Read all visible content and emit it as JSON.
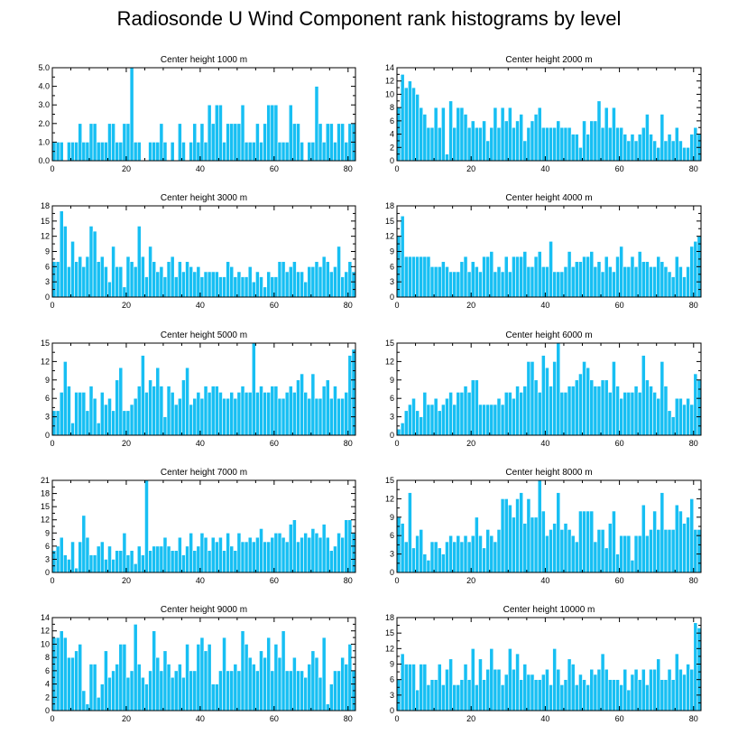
{
  "title": "Radiosonde U Wind Component rank histograms by level",
  "colors": {
    "bar": "#17BFF3",
    "bar_edge": "#ffffff",
    "axis": "#000000"
  },
  "chart_data": [
    {
      "type": "bar",
      "title": "Center height 1000 m",
      "xlim": [
        0,
        82
      ],
      "xticks": [
        0,
        20,
        40,
        60,
        80
      ],
      "ylim": [
        0,
        5
      ],
      "yticks": [
        0,
        1,
        2,
        3,
        4,
        5
      ],
      "yticklabels": [
        "0.0",
        "1.0",
        "2.0",
        "3.0",
        "4.0",
        "5.0"
      ],
      "yaxis_side": "left",
      "values": [
        1,
        1,
        1,
        0,
        1,
        1,
        1,
        2,
        1,
        1,
        2,
        2,
        1,
        1,
        1,
        2,
        2,
        1,
        1,
        2,
        2,
        5,
        1,
        1,
        0,
        0,
        1,
        1,
        1,
        2,
        1,
        0,
        1,
        0,
        2,
        1,
        0,
        1,
        2,
        1,
        2,
        1,
        3,
        2,
        3,
        3,
        1,
        2,
        2,
        2,
        2,
        3,
        1,
        1,
        1,
        2,
        1,
        2,
        3,
        3,
        3,
        1,
        1,
        1,
        3,
        2,
        2,
        1,
        0,
        1,
        1,
        4,
        2,
        1,
        2,
        2,
        1,
        2,
        2,
        1,
        2,
        2
      ]
    },
    {
      "type": "bar",
      "title": "Center height 2000 m",
      "xlim": [
        0,
        82
      ],
      "xticks": [
        0,
        20,
        40,
        60,
        80
      ],
      "ylim": [
        0,
        14
      ],
      "yticks": [
        0,
        2,
        4,
        6,
        8,
        10,
        12,
        14
      ],
      "yticklabels": [
        "0",
        "2",
        "4",
        "6",
        "8",
        "10",
        "12",
        "14"
      ],
      "yaxis_side": "left",
      "values": [
        8,
        13,
        11,
        12,
        11,
        10,
        8,
        7,
        5,
        5,
        8,
        5,
        8,
        1,
        9,
        5,
        8,
        8,
        7,
        5,
        6,
        5,
        5,
        6,
        3,
        5,
        8,
        5,
        8,
        6,
        8,
        5,
        6,
        7,
        3,
        5,
        6,
        7,
        8,
        5,
        5,
        5,
        5,
        6,
        5,
        5,
        5,
        4,
        4,
        2,
        6,
        4,
        6,
        6,
        9,
        5,
        8,
        5,
        8,
        5,
        5,
        4,
        3,
        4,
        3,
        4,
        5,
        7,
        4,
        3,
        2,
        7,
        3,
        4,
        3,
        5,
        3,
        2,
        2,
        4,
        5,
        4
      ]
    },
    {
      "type": "bar",
      "title": "Center height 3000 m",
      "xlim": [
        0,
        82
      ],
      "xticks": [
        0,
        20,
        40,
        60,
        80
      ],
      "ylim": [
        0,
        18
      ],
      "yticks": [
        0,
        3,
        6,
        9,
        12,
        15,
        18
      ],
      "yticklabels": [
        "0",
        "3",
        "6",
        "9",
        "12",
        "15",
        "18"
      ],
      "yaxis_side": "left",
      "values": [
        7,
        7,
        17,
        14,
        6,
        11,
        7,
        8,
        6,
        8,
        14,
        13,
        7,
        8,
        6,
        3,
        10,
        6,
        6,
        2,
        8,
        7,
        6,
        14,
        8,
        4,
        10,
        7,
        5,
        6,
        4,
        7,
        8,
        4,
        7,
        5,
        7,
        6,
        5,
        6,
        4,
        5,
        5,
        5,
        5,
        4,
        4,
        7,
        6,
        4,
        5,
        4,
        4,
        6,
        3,
        5,
        4,
        2,
        5,
        4,
        4,
        7,
        7,
        5,
        6,
        7,
        5,
        5,
        3,
        6,
        6,
        7,
        6,
        8,
        7,
        5,
        6,
        10,
        4,
        5,
        7,
        5
      ]
    },
    {
      "type": "bar",
      "title": "Center height 4000 m",
      "xlim": [
        0,
        82
      ],
      "xticks": [
        0,
        20,
        40,
        60,
        80
      ],
      "ylim": [
        0,
        18
      ],
      "yticks": [
        0,
        3,
        6,
        9,
        12,
        15,
        18
      ],
      "yticklabels": [
        "0",
        "3",
        "6",
        "9",
        "12",
        "15",
        "18"
      ],
      "yaxis_side": "left",
      "values": [
        12,
        16,
        8,
        8,
        8,
        8,
        8,
        8,
        8,
        6,
        6,
        6,
        7,
        6,
        5,
        5,
        5,
        7,
        8,
        5,
        7,
        6,
        5,
        8,
        8,
        9,
        5,
        6,
        5,
        8,
        5,
        8,
        8,
        8,
        9,
        6,
        6,
        8,
        9,
        6,
        6,
        11,
        5,
        5,
        5,
        6,
        9,
        6,
        7,
        7,
        8,
        8,
        9,
        6,
        7,
        5,
        8,
        6,
        5,
        8,
        10,
        6,
        6,
        8,
        6,
        9,
        7,
        7,
        6,
        6,
        8,
        7,
        6,
        5,
        4,
        8,
        6,
        4,
        6,
        10,
        11,
        12
      ]
    },
    {
      "type": "bar",
      "title": "Center height 5000 m",
      "xlim": [
        0,
        82
      ],
      "xticks": [
        0,
        20,
        40,
        60,
        80
      ],
      "ylim": [
        0,
        15
      ],
      "yticks": [
        0,
        3,
        6,
        9,
        12,
        15
      ],
      "yticklabels": [
        "0",
        "3",
        "6",
        "9",
        "12",
        "15"
      ],
      "yaxis_side": "left",
      "values": [
        4,
        4,
        7,
        12,
        8,
        2,
        7,
        7,
        7,
        4,
        8,
        6,
        2,
        7,
        5,
        6,
        4,
        9,
        11,
        4,
        4,
        5,
        6,
        8,
        13,
        7,
        9,
        8,
        11,
        8,
        3,
        8,
        7,
        5,
        6,
        9,
        11,
        5,
        6,
        7,
        6,
        8,
        7,
        8,
        8,
        7,
        6,
        6,
        7,
        6,
        7,
        8,
        7,
        7,
        15,
        7,
        8,
        7,
        7,
        8,
        8,
        6,
        6,
        7,
        8,
        7,
        9,
        10,
        7,
        6,
        10,
        6,
        6,
        8,
        9,
        6,
        8,
        6,
        6,
        7,
        13,
        14
      ]
    },
    {
      "type": "bar",
      "title": "Center height 6000 m",
      "xlim": [
        0,
        82
      ],
      "xticks": [
        0,
        20,
        40,
        60,
        80
      ],
      "ylim": [
        0,
        15
      ],
      "yticks": [
        0,
        3,
        6,
        9,
        12,
        15
      ],
      "yticklabels": [
        "0",
        "3",
        "6",
        "9",
        "12",
        "15"
      ],
      "yaxis_side": "left",
      "values": [
        1,
        2,
        4,
        5,
        6,
        4,
        3,
        7,
        5,
        5,
        6,
        4,
        5,
        6,
        7,
        5,
        7,
        7,
        8,
        7,
        9,
        9,
        5,
        5,
        5,
        5,
        5,
        6,
        5,
        7,
        7,
        6,
        8,
        7,
        8,
        12,
        12,
        9,
        7,
        13,
        11,
        8,
        12,
        15,
        7,
        7,
        8,
        8,
        9,
        10,
        12,
        11,
        9,
        8,
        8,
        9,
        9,
        7,
        12,
        8,
        6,
        7,
        7,
        7,
        8,
        7,
        13,
        9,
        8,
        7,
        6,
        12,
        8,
        4,
        3,
        6,
        6,
        5,
        6,
        5,
        10,
        9
      ]
    },
    {
      "type": "bar",
      "title": "Center height 7000 m",
      "xlim": [
        0,
        82
      ],
      "xticks": [
        0,
        20,
        40,
        60,
        80
      ],
      "ylim": [
        0,
        21
      ],
      "yticks": [
        0,
        3,
        6,
        9,
        12,
        15,
        18,
        21
      ],
      "yticklabels": [
        "0",
        "3",
        "6",
        "9",
        "12",
        "15",
        "18",
        "21"
      ],
      "yaxis_side": "left",
      "values": [
        5,
        6,
        8,
        4,
        3,
        7,
        1,
        7,
        13,
        8,
        4,
        4,
        6,
        7,
        3,
        6,
        3,
        5,
        5,
        9,
        4,
        5,
        2,
        6,
        4,
        21,
        5,
        6,
        6,
        6,
        8,
        6,
        5,
        5,
        8,
        4,
        6,
        9,
        5,
        6,
        9,
        8,
        5,
        8,
        7,
        8,
        5,
        9,
        6,
        5,
        9,
        7,
        7,
        8,
        7,
        8,
        10,
        7,
        7,
        8,
        9,
        9,
        8,
        7,
        11,
        12,
        7,
        8,
        9,
        8,
        10,
        9,
        8,
        11,
        8,
        5,
        6,
        9,
        8,
        12,
        12,
        9
      ]
    },
    {
      "type": "bar",
      "title": "Center height 8000 m",
      "xlim": [
        0,
        82
      ],
      "xticks": [
        0,
        20,
        40,
        60,
        80
      ],
      "ylim": [
        0,
        15
      ],
      "yticks": [
        0,
        3,
        6,
        9,
        12,
        15
      ],
      "yticklabels": [
        "0",
        "3",
        "6",
        "9",
        "12",
        "15"
      ],
      "yaxis_side": "left",
      "values": [
        9,
        8,
        5,
        13,
        4,
        6,
        7,
        3,
        2,
        5,
        5,
        4,
        3,
        5,
        6,
        5,
        6,
        5,
        6,
        5,
        6,
        9,
        6,
        4,
        7,
        6,
        5,
        7,
        12,
        12,
        11,
        9,
        12,
        13,
        8,
        12,
        9,
        9,
        15,
        10,
        6,
        7,
        8,
        13,
        7,
        8,
        7,
        6,
        5,
        10,
        10,
        10,
        10,
        5,
        7,
        7,
        4,
        8,
        10,
        3,
        6,
        6,
        6,
        2,
        6,
        6,
        11,
        6,
        7,
        10,
        7,
        13,
        7,
        7,
        7,
        11,
        10,
        8,
        9,
        12,
        7,
        7
      ]
    },
    {
      "type": "bar",
      "title": "Center height 9000 m",
      "xlim": [
        0,
        82
      ],
      "xticks": [
        0,
        20,
        40,
        60,
        80
      ],
      "ylim": [
        0,
        14
      ],
      "yticks": [
        0,
        2,
        4,
        6,
        8,
        10,
        12,
        14
      ],
      "yticklabels": [
        "0",
        "2",
        "4",
        "6",
        "8",
        "10",
        "12",
        "14"
      ],
      "yaxis_side": "left",
      "values": [
        11,
        11,
        12,
        11,
        8,
        8,
        9,
        10,
        3,
        1,
        7,
        7,
        2,
        4,
        9,
        5,
        6,
        7,
        10,
        10,
        5,
        6,
        13,
        7,
        5,
        4,
        6,
        12,
        8,
        6,
        9,
        7,
        5,
        6,
        7,
        5,
        10,
        6,
        6,
        10,
        11,
        9,
        10,
        4,
        4,
        6,
        11,
        6,
        6,
        7,
        6,
        12,
        10,
        8,
        7,
        6,
        9,
        8,
        11,
        6,
        10,
        8,
        12,
        6,
        6,
        8,
        6,
        6,
        5,
        7,
        9,
        8,
        5,
        11,
        1,
        4,
        6,
        6,
        8,
        7,
        10,
        6
      ]
    },
    {
      "type": "bar",
      "title": "Center height 10000 m",
      "xlim": [
        0,
        82
      ],
      "xticks": [
        0,
        20,
        40,
        60,
        80
      ],
      "ylim": [
        0,
        18
      ],
      "yticks": [
        0,
        3,
        6,
        9,
        12,
        15,
        18
      ],
      "yticklabels": [
        "0",
        "3",
        "6",
        "9",
        "12",
        "15",
        "18"
      ],
      "yaxis_side": "left",
      "values": [
        6,
        11,
        9,
        9,
        9,
        4,
        9,
        9,
        5,
        6,
        6,
        9,
        5,
        8,
        10,
        5,
        5,
        6,
        9,
        6,
        12,
        5,
        10,
        6,
        8,
        12,
        8,
        8,
        5,
        7,
        12,
        8,
        11,
        6,
        9,
        7,
        7,
        6,
        6,
        7,
        8,
        5,
        12,
        8,
        5,
        6,
        10,
        9,
        5,
        7,
        6,
        5,
        8,
        7,
        8,
        11,
        8,
        6,
        6,
        6,
        5,
        8,
        4,
        7,
        8,
        6,
        8,
        5,
        8,
        8,
        10,
        6,
        6,
        8,
        6,
        11,
        8,
        7,
        9,
        8,
        17,
        16
      ]
    }
  ]
}
